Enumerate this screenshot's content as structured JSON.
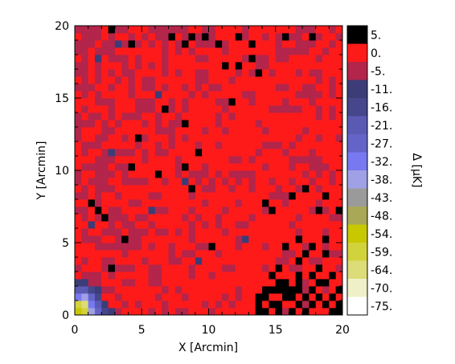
{
  "chart_data": {
    "type": "heatmap",
    "xlabel": "X [Arcmin]",
    "ylabel": "Y [Arcmin]",
    "colorbar_label": "Δ [μK]",
    "xlim": [
      0,
      20
    ],
    "ylim": [
      0,
      20
    ],
    "grid_cells": [
      40,
      40
    ],
    "xticks": [
      "0",
      "5",
      "10",
      "15",
      "20"
    ],
    "yticks": [
      "0",
      "5",
      "10",
      "15",
      "20"
    ],
    "grid": false,
    "colorbar": {
      "placement": "right",
      "labels": [
        "5.",
        "0.",
        "-5.",
        "-11.",
        "-16.",
        "-21.",
        "-27.",
        "-32.",
        "-38.",
        "-43.",
        "-48.",
        "-54.",
        "-59.",
        "-64.",
        "-70.",
        "-75."
      ],
      "colors": [
        "#000000",
        "#ff1a1a",
        "#b3254a",
        "#3c3c78",
        "#46468c",
        "#5a5ab4",
        "#6464c8",
        "#7878f0",
        "#a0a0e6",
        "#9a9a9a",
        "#a8a857",
        "#c8c800",
        "#d2d23c",
        "#dcdc78",
        "#f0f0c8",
        "#ffffff"
      ]
    },
    "base_level": "0.",
    "description_of_values": {
      "black_cells_5": [
        [
          5,
          39
        ],
        [
          8,
          37
        ],
        [
          14,
          38
        ],
        [
          16,
          37
        ],
        [
          19,
          38
        ],
        [
          24,
          38
        ],
        [
          26,
          37
        ],
        [
          35,
          38
        ],
        [
          31,
          38
        ],
        [
          21,
          37
        ],
        [
          17,
          38
        ],
        [
          22,
          34
        ],
        [
          27,
          33
        ],
        [
          26,
          35
        ],
        [
          24,
          34
        ],
        [
          13,
          28
        ],
        [
          16,
          26
        ],
        [
          23,
          29
        ],
        [
          9,
          24
        ],
        [
          8,
          20
        ],
        [
          17,
          17
        ],
        [
          2,
          15
        ],
        [
          3,
          14
        ],
        [
          4,
          13
        ],
        [
          12,
          19
        ],
        [
          16,
          20
        ],
        [
          18,
          22
        ],
        [
          28,
          15
        ],
        [
          29,
          14
        ],
        [
          32,
          16
        ],
        [
          34,
          17
        ],
        [
          37,
          16
        ],
        [
          36,
          14
        ],
        [
          39,
          14
        ],
        [
          35,
          9
        ],
        [
          37,
          10
        ],
        [
          33,
          10
        ],
        [
          31,
          9
        ],
        [
          7,
          10
        ],
        [
          20,
          9
        ],
        [
          5,
          6
        ],
        [
          36,
          6
        ],
        [
          33,
          7
        ],
        [
          34,
          8
        ],
        [
          30,
          6
        ],
        [
          27,
          2
        ],
        [
          28,
          3
        ],
        [
          29,
          3
        ],
        [
          30,
          3
        ],
        [
          31,
          3
        ],
        [
          32,
          3
        ],
        [
          33,
          3
        ],
        [
          28,
          2
        ],
        [
          29,
          1
        ],
        [
          30,
          1
        ],
        [
          31,
          2
        ],
        [
          32,
          2
        ],
        [
          33,
          1
        ],
        [
          34,
          2
        ],
        [
          35,
          3
        ],
        [
          36,
          2
        ],
        [
          37,
          1
        ],
        [
          38,
          2
        ],
        [
          39,
          1
        ],
        [
          39,
          3
        ],
        [
          27,
          1
        ],
        [
          27,
          0
        ],
        [
          28,
          0
        ],
        [
          30,
          0
        ],
        [
          32,
          0
        ],
        [
          34,
          0
        ],
        [
          35,
          1
        ],
        [
          36,
          4
        ],
        [
          37,
          4
        ],
        [
          38,
          0
        ],
        [
          39,
          0
        ],
        [
          29,
          5
        ],
        [
          30,
          4
        ],
        [
          33,
          5
        ],
        [
          37,
          8
        ],
        [
          35,
          5
        ],
        [
          38,
          5
        ],
        [
          31,
          4
        ],
        [
          33,
          4
        ]
      ],
      "pale_blue_blob_near_origin": true
    }
  }
}
